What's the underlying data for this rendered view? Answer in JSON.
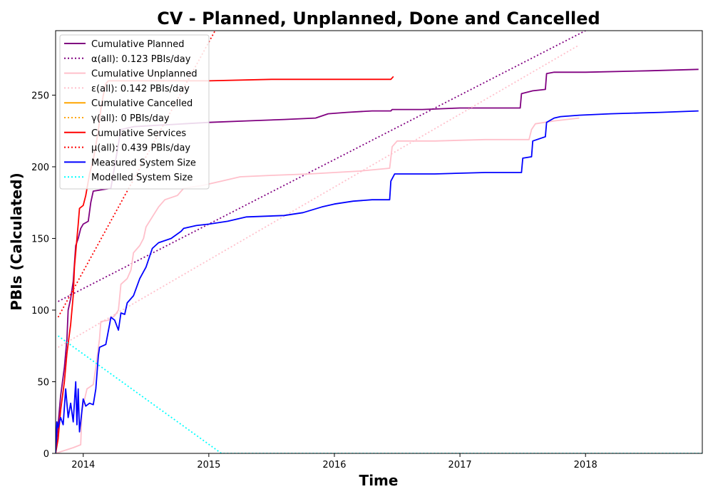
{
  "chart_data": {
    "type": "line",
    "title": "CV - Planned, Unplanned, Done  and Cancelled",
    "xlabel": "Time",
    "ylabel": "PBIs (Calculated)",
    "x_range": [
      2013.78,
      2018.93
    ],
    "ylim": [
      0,
      295
    ],
    "x_ticks": [
      {
        "label": "2014",
        "value": 2014.0
      },
      {
        "label": "2015",
        "value": 2015.0
      },
      {
        "label": "2016",
        "value": 2016.0
      },
      {
        "label": "2017",
        "value": 2017.0
      },
      {
        "label": "2018",
        "value": 2018.0
      }
    ],
    "y_ticks": [
      0,
      50,
      100,
      150,
      200,
      250
    ],
    "grid": false,
    "legend_position": "top-left",
    "series": [
      {
        "name": "Cumulative Planned",
        "style": "solid",
        "color": "#800080",
        "points": [
          [
            2013.78,
            0
          ],
          [
            2013.8,
            20
          ],
          [
            2013.82,
            40
          ],
          [
            2013.85,
            60
          ],
          [
            2013.87,
            80
          ],
          [
            2013.88,
            100
          ],
          [
            2013.9,
            108
          ],
          [
            2013.92,
            120
          ],
          [
            2013.94,
            145
          ],
          [
            2013.96,
            150
          ],
          [
            2013.98,
            157
          ],
          [
            2014.0,
            160
          ],
          [
            2014.02,
            161
          ],
          [
            2014.04,
            162
          ],
          [
            2014.06,
            175
          ],
          [
            2014.08,
            183
          ],
          [
            2014.15,
            184
          ],
          [
            2014.22,
            185
          ],
          [
            2014.3,
            226
          ],
          [
            2014.4,
            228
          ],
          [
            2014.6,
            229
          ],
          [
            2014.8,
            230
          ],
          [
            2015.0,
            231
          ],
          [
            2015.3,
            232
          ],
          [
            2015.6,
            233
          ],
          [
            2015.85,
            234
          ],
          [
            2015.95,
            237
          ],
          [
            2016.1,
            238
          ],
          [
            2016.3,
            239
          ],
          [
            2016.45,
            239
          ],
          [
            2016.46,
            240
          ],
          [
            2016.7,
            240
          ],
          [
            2017.0,
            241
          ],
          [
            2017.3,
            241
          ],
          [
            2017.48,
            241
          ],
          [
            2017.49,
            251
          ],
          [
            2017.58,
            253
          ],
          [
            2017.68,
            254
          ],
          [
            2017.69,
            265
          ],
          [
            2017.75,
            266
          ],
          [
            2018.0,
            266
          ],
          [
            2018.5,
            267
          ],
          [
            2018.9,
            268
          ]
        ]
      },
      {
        "name": "α(all): 0.123 PBIs/day",
        "style": "dotted",
        "color": "#800080",
        "points": [
          [
            2013.8,
            106
          ],
          [
            2018.0,
            295
          ]
        ]
      },
      {
        "name": "Cumulative Unplanned",
        "style": "solid",
        "color": "#ffc0cb",
        "points": [
          [
            2013.78,
            0
          ],
          [
            2013.85,
            2
          ],
          [
            2013.92,
            4
          ],
          [
            2013.98,
            6
          ],
          [
            2013.99,
            30
          ],
          [
            2014.03,
            45
          ],
          [
            2014.08,
            48
          ],
          [
            2014.1,
            60
          ],
          [
            2014.13,
            80
          ],
          [
            2014.14,
            92
          ],
          [
            2014.2,
            93
          ],
          [
            2014.25,
            96
          ],
          [
            2014.28,
            100
          ],
          [
            2014.3,
            118
          ],
          [
            2014.35,
            122
          ],
          [
            2014.38,
            128
          ],
          [
            2014.4,
            140
          ],
          [
            2014.45,
            145
          ],
          [
            2014.48,
            150
          ],
          [
            2014.5,
            158
          ],
          [
            2014.55,
            165
          ],
          [
            2014.6,
            172
          ],
          [
            2014.65,
            177
          ],
          [
            2014.75,
            180
          ],
          [
            2014.8,
            185
          ],
          [
            2014.95,
            187
          ],
          [
            2015.1,
            190
          ],
          [
            2015.25,
            193
          ],
          [
            2015.5,
            194
          ],
          [
            2015.8,
            195
          ],
          [
            2016.0,
            196
          ],
          [
            2016.2,
            197
          ],
          [
            2016.44,
            199
          ],
          [
            2016.46,
            214
          ],
          [
            2016.5,
            218
          ],
          [
            2016.8,
            218
          ],
          [
            2017.2,
            219
          ],
          [
            2017.55,
            219
          ],
          [
            2017.57,
            226
          ],
          [
            2017.6,
            230
          ],
          [
            2017.75,
            232
          ],
          [
            2017.95,
            234
          ]
        ]
      },
      {
        "name": "ε(all): 0.142 PBIs/day",
        "style": "dotted",
        "color": "#ffc0cb",
        "points": [
          [
            2013.8,
            74
          ],
          [
            2017.95,
            285
          ]
        ]
      },
      {
        "name": "Cumulative Cancelled",
        "style": "solid",
        "color": "#ffa500",
        "points": []
      },
      {
        "name": "γ(all): 0 PBIs/day",
        "style": "dotted",
        "color": "#ffa500",
        "points": []
      },
      {
        "name": "Cumulative Services",
        "style": "solid",
        "color": "#ff0000",
        "points": [
          [
            2013.78,
            0
          ],
          [
            2013.8,
            10
          ],
          [
            2013.82,
            30
          ],
          [
            2013.85,
            50
          ],
          [
            2013.87,
            70
          ],
          [
            2013.9,
            90
          ],
          [
            2013.92,
            110
          ],
          [
            2013.93,
            130
          ],
          [
            2013.95,
            150
          ],
          [
            2013.96,
            160
          ],
          [
            2013.97,
            171
          ],
          [
            2014.0,
            173
          ],
          [
            2014.02,
            180
          ],
          [
            2014.05,
            195
          ],
          [
            2014.08,
            205
          ],
          [
            2014.1,
            215
          ],
          [
            2014.12,
            225
          ],
          [
            2014.14,
            240
          ],
          [
            2014.16,
            250
          ],
          [
            2014.18,
            258
          ],
          [
            2014.2,
            260
          ],
          [
            2015.0,
            260
          ],
          [
            2015.5,
            261
          ],
          [
            2016.0,
            261
          ],
          [
            2016.45,
            261
          ],
          [
            2016.47,
            263
          ]
        ]
      },
      {
        "name": "μ(all): 0.439 PBIs/day",
        "style": "dotted",
        "color": "#ff0000",
        "points": [
          [
            2013.8,
            95
          ],
          [
            2015.05,
            295
          ]
        ]
      },
      {
        "name": "Measured System Size",
        "style": "solid",
        "color": "#0000ff",
        "points": [
          [
            2013.78,
            0
          ],
          [
            2013.79,
            22
          ],
          [
            2013.8,
            18
          ],
          [
            2013.82,
            25
          ],
          [
            2013.84,
            20
          ],
          [
            2013.86,
            45
          ],
          [
            2013.88,
            25
          ],
          [
            2013.9,
            35
          ],
          [
            2013.92,
            22
          ],
          [
            2013.94,
            50
          ],
          [
            2013.95,
            20
          ],
          [
            2013.96,
            45
          ],
          [
            2013.97,
            15
          ],
          [
            2013.98,
            22
          ],
          [
            2014.0,
            38
          ],
          [
            2014.02,
            33
          ],
          [
            2014.05,
            35
          ],
          [
            2014.08,
            34
          ],
          [
            2014.1,
            45
          ],
          [
            2014.12,
            68
          ],
          [
            2014.13,
            74
          ],
          [
            2014.18,
            76
          ],
          [
            2014.21,
            90
          ],
          [
            2014.22,
            95
          ],
          [
            2014.25,
            93
          ],
          [
            2014.28,
            86
          ],
          [
            2014.3,
            98
          ],
          [
            2014.33,
            97
          ],
          [
            2014.35,
            105
          ],
          [
            2014.4,
            110
          ],
          [
            2014.45,
            122
          ],
          [
            2014.5,
            130
          ],
          [
            2014.55,
            143
          ],
          [
            2014.6,
            147
          ],
          [
            2014.7,
            150
          ],
          [
            2014.78,
            155
          ],
          [
            2014.8,
            157
          ],
          [
            2014.9,
            159
          ],
          [
            2015.0,
            160
          ],
          [
            2015.15,
            162
          ],
          [
            2015.3,
            165
          ],
          [
            2015.6,
            166
          ],
          [
            2015.75,
            168
          ],
          [
            2015.9,
            172
          ],
          [
            2016.0,
            174
          ],
          [
            2016.15,
            176
          ],
          [
            2016.3,
            177
          ],
          [
            2016.44,
            177
          ],
          [
            2016.45,
            190
          ],
          [
            2016.48,
            195
          ],
          [
            2016.8,
            195
          ],
          [
            2017.2,
            196
          ],
          [
            2017.49,
            196
          ],
          [
            2017.5,
            206
          ],
          [
            2017.57,
            207
          ],
          [
            2017.58,
            218
          ],
          [
            2017.68,
            221
          ],
          [
            2017.69,
            231
          ],
          [
            2017.75,
            234
          ],
          [
            2017.8,
            235
          ],
          [
            2017.95,
            236
          ],
          [
            2018.2,
            237
          ],
          [
            2018.6,
            238
          ],
          [
            2018.9,
            239
          ]
        ]
      },
      {
        "name": "Modelled System Size",
        "style": "dotted",
        "color": "#00ffff",
        "points": [
          [
            2013.8,
            82
          ],
          [
            2015.1,
            0
          ],
          [
            2018.93,
            0
          ]
        ]
      }
    ]
  }
}
